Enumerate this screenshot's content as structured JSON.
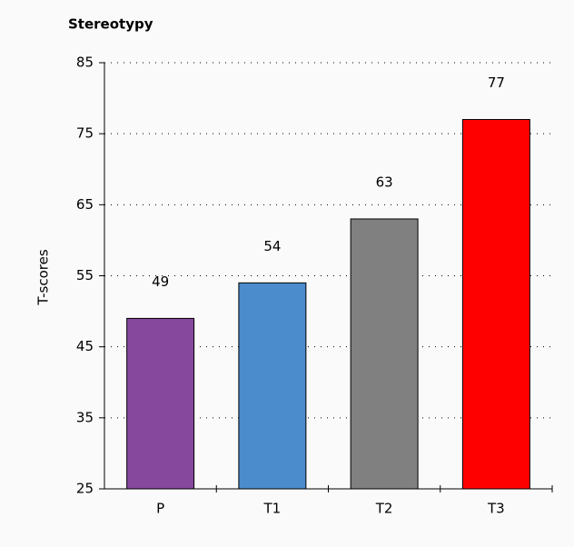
{
  "chart_data": {
    "type": "bar",
    "title": "Stereotypy",
    "y_label": "T-scores",
    "categories": [
      "P",
      "T1",
      "T2",
      "T3"
    ],
    "values": [
      49,
      54,
      63,
      77
    ],
    "colors": [
      "#86489c",
      "#4a8ccc",
      "#808080",
      "#ff0000"
    ],
    "ylim": [
      25,
      85
    ],
    "yticks": [
      25,
      35,
      45,
      55,
      65,
      75,
      85
    ],
    "grid": true,
    "data_labels": true
  }
}
